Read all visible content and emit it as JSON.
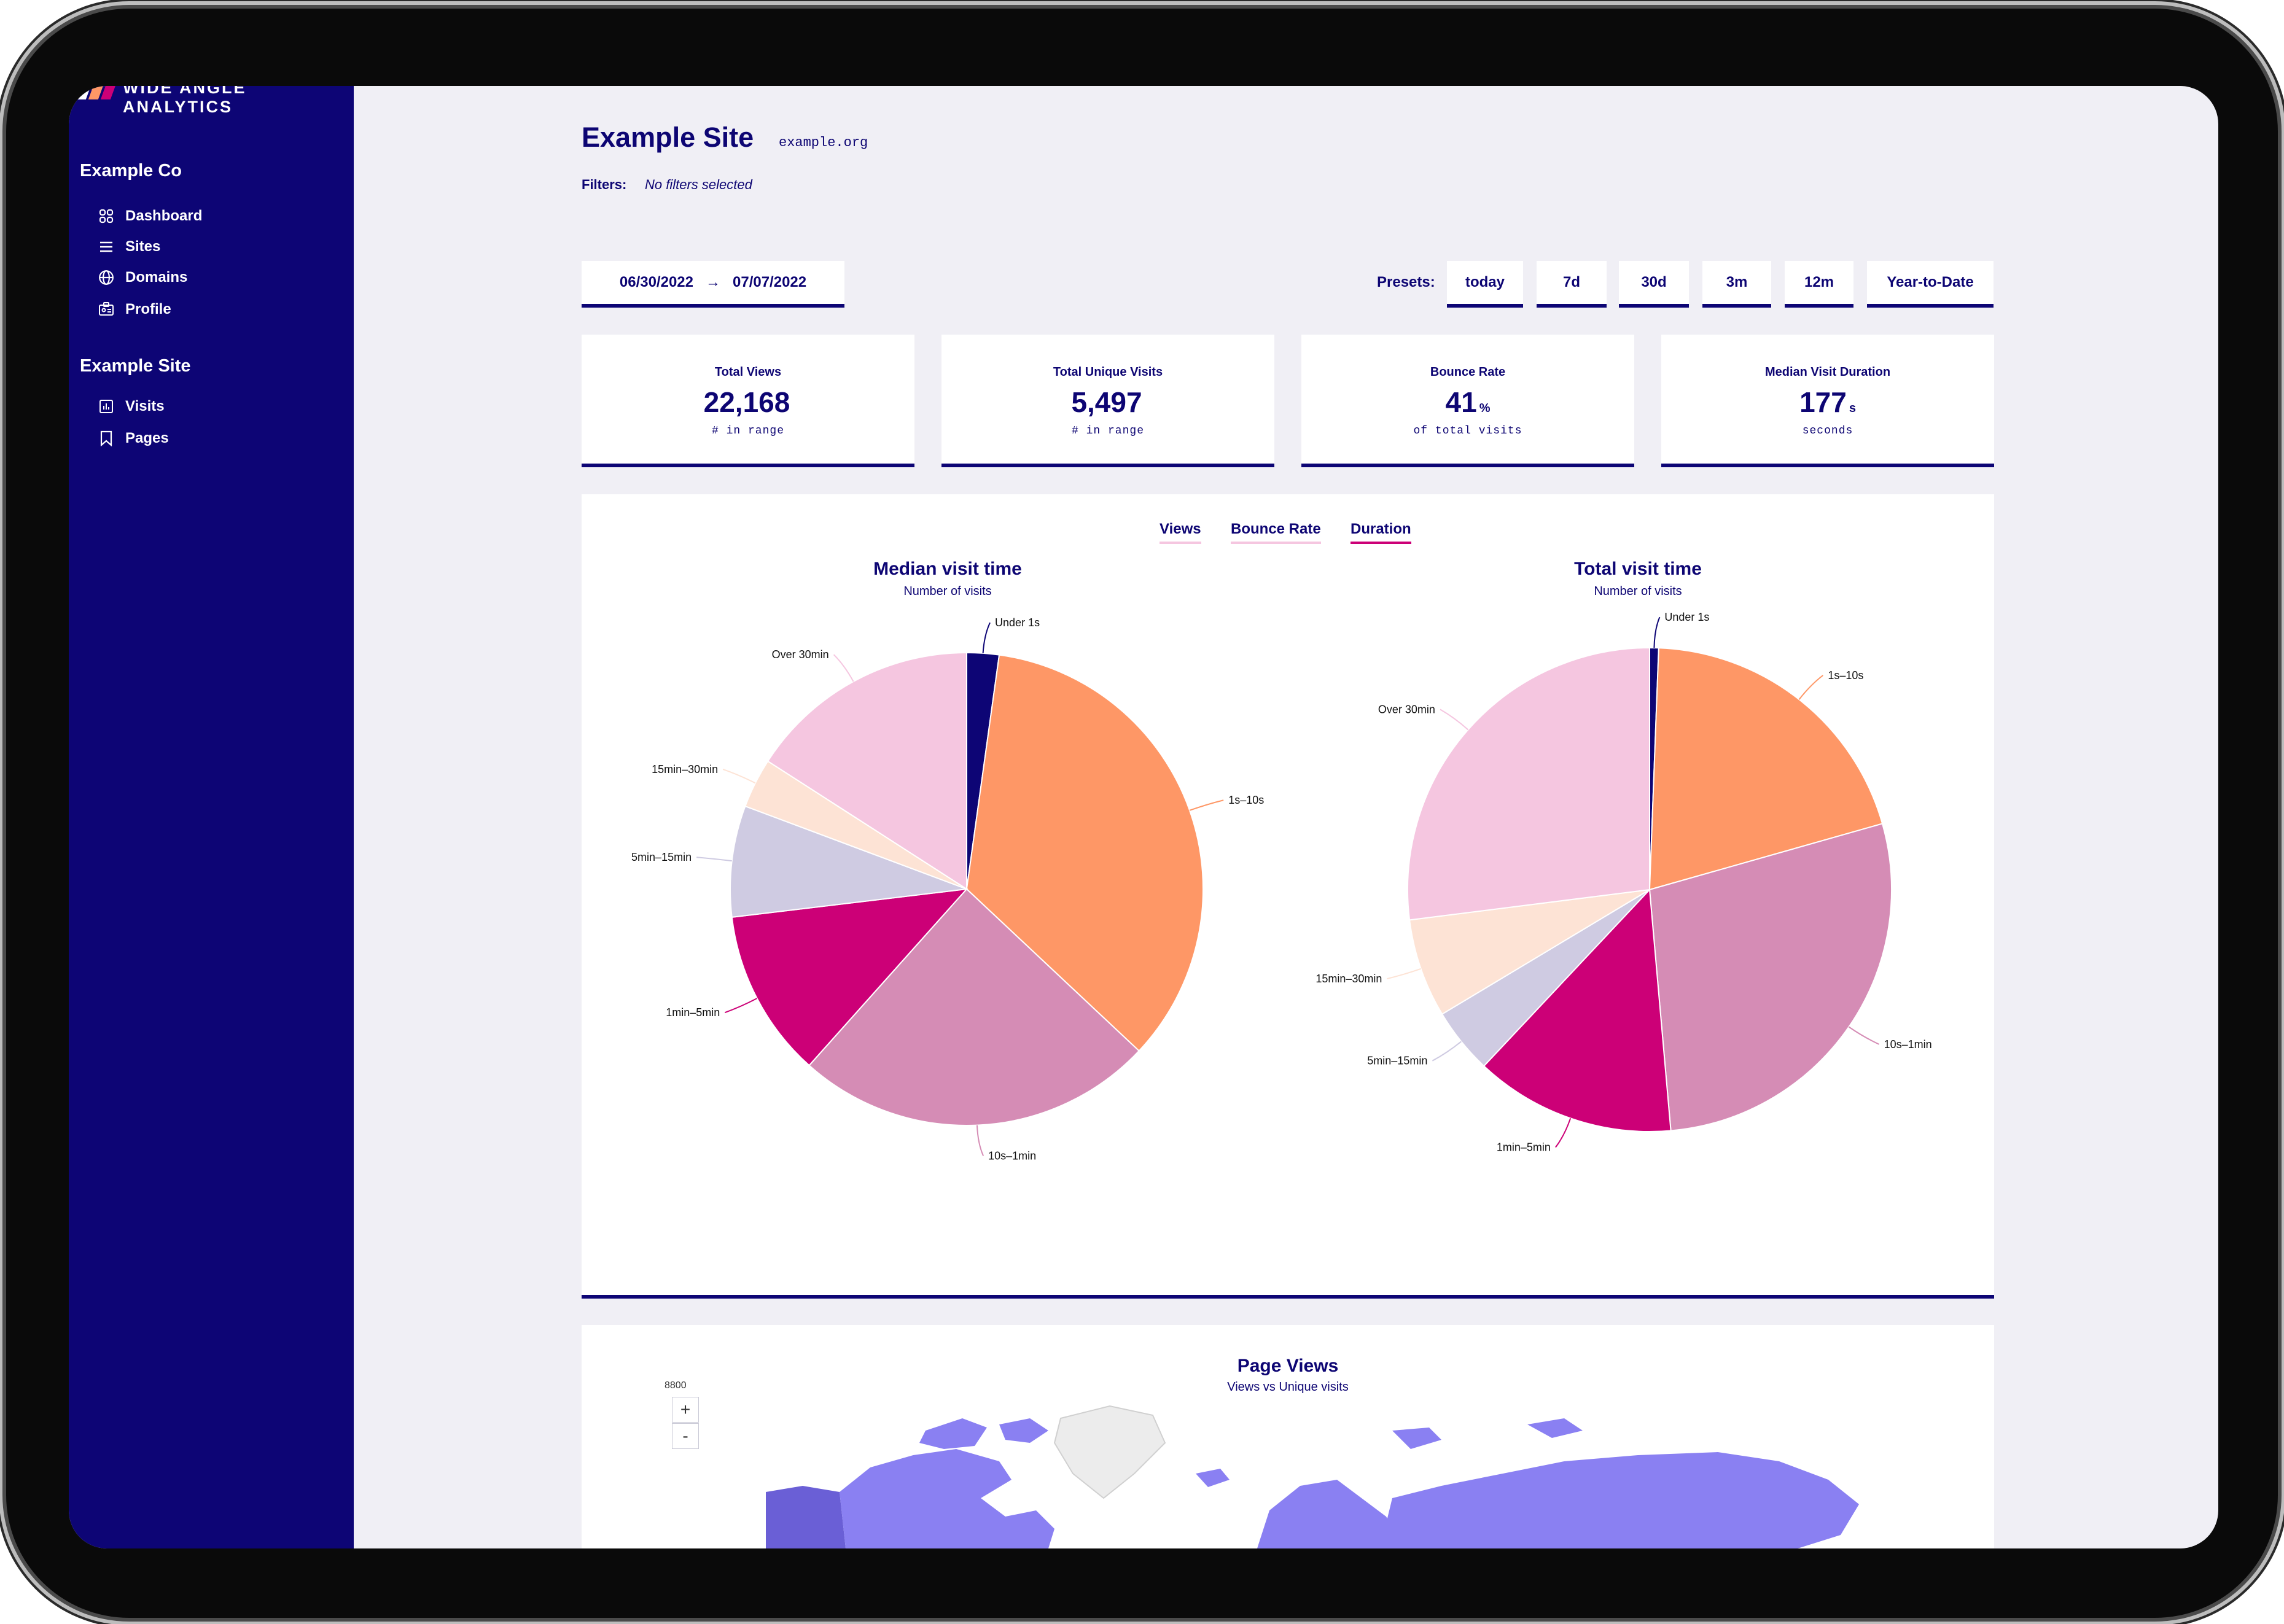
{
  "brand": {
    "name": "Wide Angle Analytics"
  },
  "sidebar": {
    "org": "Example Co",
    "org_items": [
      {
        "label": "Dashboard",
        "icon": "grid-icon"
      },
      {
        "label": "Sites",
        "icon": "list-icon"
      },
      {
        "label": "Domains",
        "icon": "globe-icon"
      },
      {
        "label": "Profile",
        "icon": "id-card-icon"
      }
    ],
    "site": "Example Site",
    "site_items": [
      {
        "label": "Visits",
        "icon": "bar-chart-icon"
      },
      {
        "label": "Pages",
        "icon": "bookmark-icon"
      }
    ]
  },
  "header": {
    "title": "Example Site",
    "domain": "example.org",
    "filters_label": "Filters:",
    "filters_value": "No filters selected"
  },
  "date_range": {
    "from": "06/30/2022",
    "arrow": "→",
    "to": "07/07/2022"
  },
  "presets": {
    "label": "Presets:",
    "items": [
      "today",
      "7d",
      "30d",
      "3m",
      "12m",
      "Year-to-Date"
    ]
  },
  "stats": [
    {
      "label": "Total Views",
      "value": "22,168",
      "unit": "",
      "sub": "# in range"
    },
    {
      "label": "Total Unique Visits",
      "value": "5,497",
      "unit": "",
      "sub": "# in range"
    },
    {
      "label": "Bounce Rate",
      "value": "41",
      "unit": "%",
      "sub": "of total visits"
    },
    {
      "label": "Median Visit Duration",
      "value": "177",
      "unit": "s",
      "sub": "seconds"
    }
  ],
  "tabs": {
    "views": "Views",
    "bounce": "Bounce Rate",
    "duration": "Duration",
    "active": "duration"
  },
  "colors": {
    "navy": "#0d0575",
    "under_1s": "#0d0575",
    "s1_10": "#fe9766",
    "s10_1min": "#d58cb5",
    "m1_5": "#cc0077",
    "m5_15": "#cfcbe2",
    "m15_30": "#fde3d5",
    "over_30": "#f5c6e0",
    "map_country": "#8a80f2",
    "map_highlight": "#6a5fd6",
    "map_empty": "#ececec"
  },
  "chart_data": [
    {
      "type": "pie",
      "title": "Median visit time",
      "subtitle": "Number of visits",
      "categories": [
        "Under 1s",
        "1s–10s",
        "10s–1min",
        "1min–5min",
        "5min–15min",
        "15min–30min",
        "Over 30min"
      ],
      "values": [
        2.2,
        34.8,
        24.6,
        11.5,
        7.6,
        3.4,
        15.9
      ]
    },
    {
      "type": "pie",
      "title": "Total visit time",
      "subtitle": "Number of visits",
      "categories": [
        "Under 1s",
        "1s–10s",
        "10s–1min",
        "1min–5min",
        "5min–15min",
        "15min–30min",
        "Over 30min"
      ],
      "values": [
        0.6,
        20.0,
        28.0,
        13.4,
        4.4,
        6.6,
        27.0
      ]
    }
  ],
  "map": {
    "title": "Page Views",
    "subtitle": "Views vs Unique visits",
    "legend_value": "8800",
    "zoom_in": "+",
    "zoom_out": "-"
  }
}
